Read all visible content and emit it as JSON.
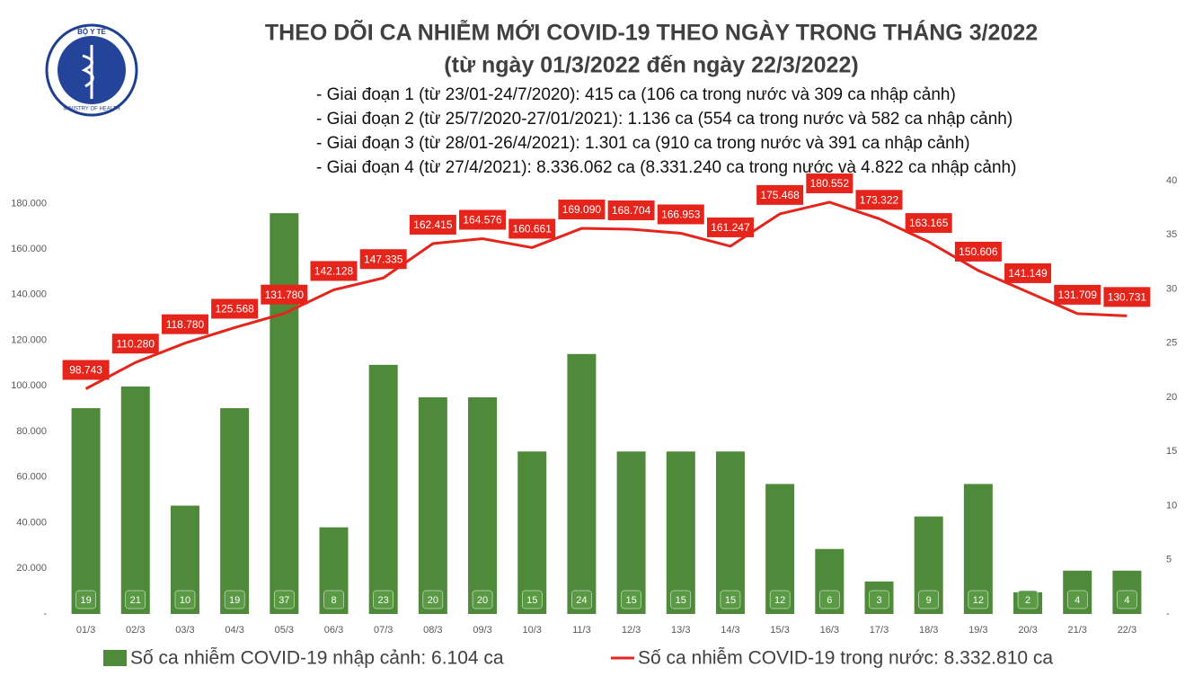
{
  "chart_data": {
    "type": "bar-line",
    "logo_top": "BỘ Y TẾ",
    "logo_bottom": "MINISTRY OF HEALTH",
    "title": "THEO DÕI CA NHIỄM MỚI COVID-19 THEO NGÀY TRONG THÁNG 3/2022",
    "subtitle": "(từ ngày 01/3/2022 đến ngày 22/3/2022)",
    "notes": [
      "- Giai đoạn 1 (từ 23/01-24/7/2020): 415 ca (106 ca trong nước và 309 ca nhập cảnh)",
      "- Giai đoạn 2 (từ 25/7/2020-27/01/2021): 1.136 ca (554 ca trong nước và 582 ca nhập cảnh)",
      "- Giai đoạn 3 (từ 28/01-26/4/2021): 1.301 ca (910 ca trong nước và 391 ca nhập cảnh)",
      "- Giai đoạn 4 (từ 27/4/2021): 8.336.062 ca (8.331.240 ca trong nước và 4.822 ca nhập cảnh)"
    ],
    "categories": [
      "01/3",
      "02/3",
      "03/3",
      "04/3",
      "05/3",
      "06/3",
      "07/3",
      "08/3",
      "09/3",
      "10/3",
      "11/3",
      "12/3",
      "13/3",
      "14/3",
      "15/3",
      "16/3",
      "17/3",
      "18/3",
      "19/3",
      "20/3",
      "21/3",
      "22/3"
    ],
    "series": [
      {
        "name": "Số ca nhiễm COVID-19 nhập cảnh: 6.104 ca",
        "type": "bar",
        "axis": "y2",
        "color": "#4f8a3b",
        "values": [
          19,
          21,
          10,
          19,
          37,
          8,
          23,
          20,
          20,
          15,
          24,
          15,
          15,
          15,
          12,
          6,
          3,
          9,
          12,
          2,
          4,
          4
        ]
      },
      {
        "name": "Số ca nhiễm COVID-19 trong nước: 8.332.810 ca",
        "type": "line",
        "color": "#e5251c",
        "values": [
          98743,
          110280,
          118780,
          125568,
          131780,
          142128,
          147335,
          162415,
          164576,
          160661,
          169090,
          168704,
          166953,
          161247,
          175468,
          180552,
          173322,
          163165,
          150606,
          141149,
          131709,
          130731
        ],
        "value_labels": [
          "98.743",
          "110.280",
          "118.780",
          "125.568",
          "131.780",
          "142.128",
          "147.335",
          "162.415",
          "164.576",
          "160.661",
          "169.090",
          "168.704",
          "166.953",
          "161.247",
          "175.468",
          "180.552",
          "173.322",
          "163.165",
          "150.606",
          "141.149",
          "131.709",
          "130.731"
        ]
      }
    ],
    "ylim": [
      0,
      190000
    ],
    "yticks": [
      {
        "value": 0,
        "label": "-"
      },
      {
        "value": 20000,
        "label": "20.000"
      },
      {
        "value": 40000,
        "label": "40.000"
      },
      {
        "value": 60000,
        "label": "60.000"
      },
      {
        "value": 80000,
        "label": "80.000"
      },
      {
        "value": 100000,
        "label": "100.000"
      },
      {
        "value": 120000,
        "label": "120.000"
      },
      {
        "value": 140000,
        "label": "140.000"
      },
      {
        "value": 160000,
        "label": "160.000"
      },
      {
        "value": 180000,
        "label": "180.000"
      }
    ],
    "y2lim": [
      0,
      40
    ],
    "y2ticks": [
      {
        "value": 0,
        "label": "-"
      },
      5,
      10,
      15,
      20,
      25,
      30,
      35,
      40
    ]
  }
}
